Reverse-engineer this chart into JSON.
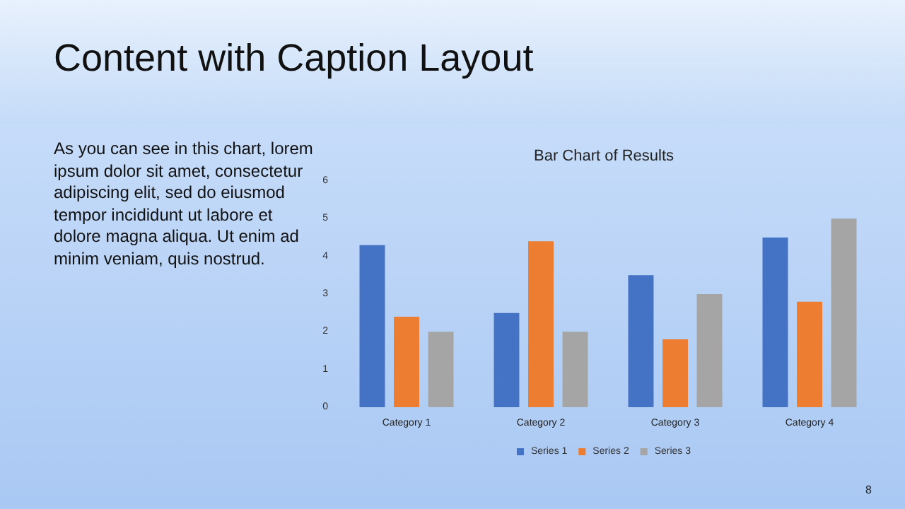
{
  "chart_data": {
    "type": "bar",
    "title": "Content with Caption Layout",
    "subtitle": "Bar Chart of Results",
    "annotations": [
      "As you can see in this chart, lorem ipsum dolor sit amet, consectetur adipiscing elit, sed do eiusmod tempor incididunt ut labore et dolore magna aliqua. Ut enim ad minim veniam, quis nostrud.",
      "8"
    ],
    "categories": [
      "Category 1",
      "Category 2",
      "Category 3",
      "Category 4"
    ],
    "series": [
      {
        "name": "Series 1",
        "color": "#4472c4",
        "values": [
          4.3,
          2.5,
          3.5,
          4.5
        ]
      },
      {
        "name": "Series 2",
        "color": "#ed7d31",
        "values": [
          2.4,
          4.4,
          1.8,
          2.8
        ]
      },
      {
        "name": "Series 3",
        "color": "#a5a5a5",
        "values": [
          2,
          2,
          3,
          5
        ]
      }
    ],
    "ylim": [
      0,
      6
    ],
    "yticks": [
      0,
      1,
      2,
      3,
      4,
      5,
      6
    ],
    "grid": false,
    "legend": "bottom"
  }
}
